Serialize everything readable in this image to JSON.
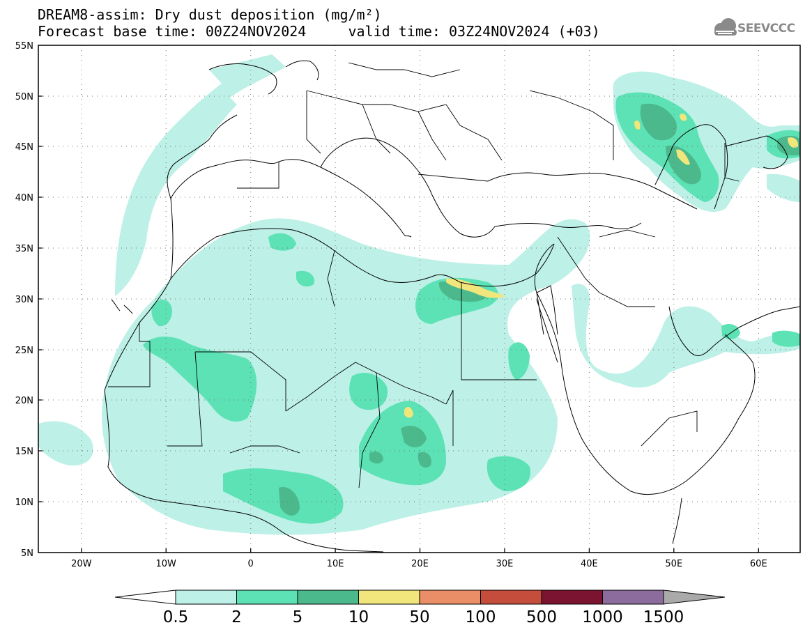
{
  "header": {
    "title_line1": "DREAM8-assim: Dry dust deposition (mg/m²)",
    "title_line2": "Forecast base time: 00Z24NOV2024     valid time: 03Z24NOV2024 (+03)",
    "logo_text": "SEEVCCC"
  },
  "map": {
    "projection": "lat-lon",
    "lon_range": [
      -25,
      65
    ],
    "lat_range": [
      5,
      55
    ],
    "grid": "dotted",
    "lon_ticks": [
      "20W",
      "10W",
      "0",
      "10E",
      "20E",
      "30E",
      "40E",
      "50E",
      "60E"
    ],
    "lat_ticks": [
      "55N",
      "50N",
      "45N",
      "40N",
      "35N",
      "30N",
      "25N",
      "20N",
      "15N",
      "10N",
      "5N"
    ]
  },
  "colorbar": {
    "labels": [
      "0.5",
      "2",
      "5",
      "10",
      "50",
      "100",
      "500",
      "1000",
      "1500"
    ],
    "colors": [
      "#bdf0e6",
      "#5ce2b5",
      "#4cb98d",
      "#f0e67c",
      "#e98e66",
      "#c44d3c",
      "#7b1430",
      "#8b6c9c",
      "#aaaaaa"
    ],
    "min_arrow_color": "#ffffff"
  },
  "chart_data": {
    "type": "heatmap",
    "variable": "Dry dust deposition",
    "units": "mg/m²",
    "levels": [
      0.5,
      2,
      5,
      10,
      50,
      100,
      500,
      1000,
      1500
    ]
  }
}
